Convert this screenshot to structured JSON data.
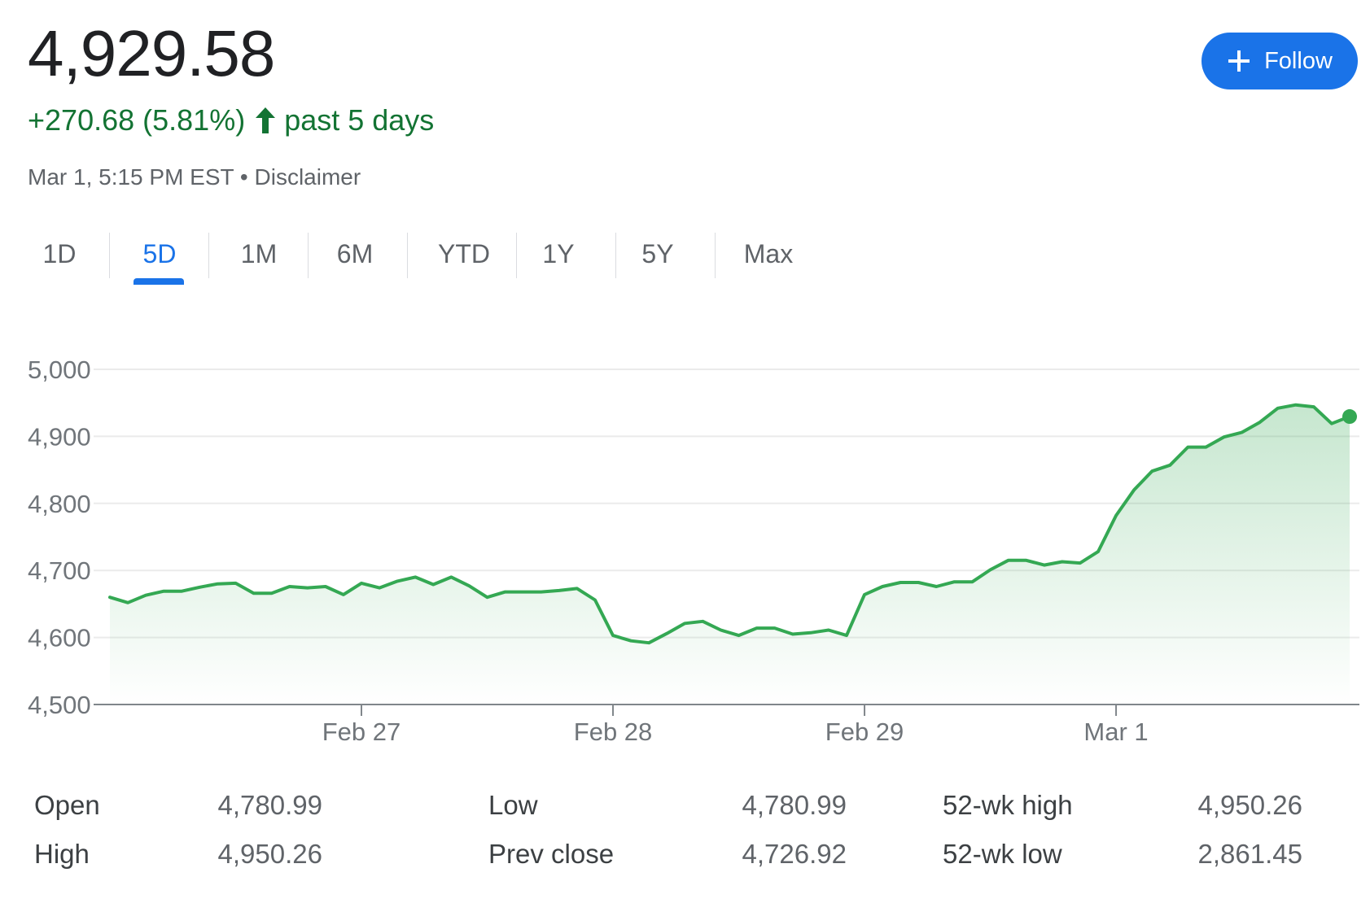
{
  "quote": {
    "price": "4,929.58",
    "change": "+270.68 (5.81%)",
    "period": "past 5 days",
    "timestamp": "Mar 1, 5:15 PM EST",
    "separator": "•",
    "disclaimer": "Disclaimer",
    "up_color": "#137333",
    "arrow_icon": "arrow-up-icon"
  },
  "follow_button": {
    "label": "Follow",
    "icon": "plus-icon",
    "color": "#1a73e8"
  },
  "range_tabs": [
    "1D",
    "5D",
    "1M",
    "6M",
    "YTD",
    "1Y",
    "5Y",
    "Max"
  ],
  "active_tab": "5D",
  "chart_data": {
    "type": "area",
    "y_ticks": [
      "5,000",
      "4,900",
      "4,800",
      "4,700",
      "4,600",
      "4,500"
    ],
    "ylim": [
      4500,
      5000
    ],
    "x_tick_labels": [
      "Feb 27",
      "Feb 28",
      "Feb 29",
      "Mar 1"
    ],
    "x_tick_index": [
      14,
      28,
      42,
      56
    ],
    "line_color": "#34a853",
    "grid": true,
    "series": [
      {
        "values": [
          4660,
          4652,
          4663,
          4669,
          4669,
          4675,
          4680,
          4681,
          4666,
          4666,
          4676,
          4674,
          4676,
          4664,
          4681,
          4674,
          4684,
          4690,
          4679,
          4690,
          4677,
          4660,
          4668,
          4668,
          4668,
          4670,
          4673,
          4656,
          4603,
          4595,
          4592,
          4606,
          4621,
          4624,
          4611,
          4603,
          4614,
          4614,
          4605,
          4607,
          4611,
          4603,
          4664,
          4676,
          4682,
          4682,
          4676,
          4683,
          4683,
          4701,
          4715,
          4715,
          4708,
          4713,
          4711,
          4728,
          4782,
          4820,
          4848,
          4857,
          4884,
          4884,
          4899,
          4906,
          4921,
          4942,
          4947,
          4944,
          4919,
          4929.58
        ],
        "last_point": 4929.58
      }
    ]
  },
  "stats": {
    "open_label": "Open",
    "open_value": "4,780.99",
    "high_label": "High",
    "high_value": "4,950.26",
    "low_label": "Low",
    "low_value": "4,780.99",
    "prev_close_label": "Prev close",
    "prev_close_value": "4,726.92",
    "wk52_high_label": "52-wk high",
    "wk52_high_value": "4,950.26",
    "wk52_low_label": "52-wk low",
    "wk52_low_value": "2,861.45"
  }
}
